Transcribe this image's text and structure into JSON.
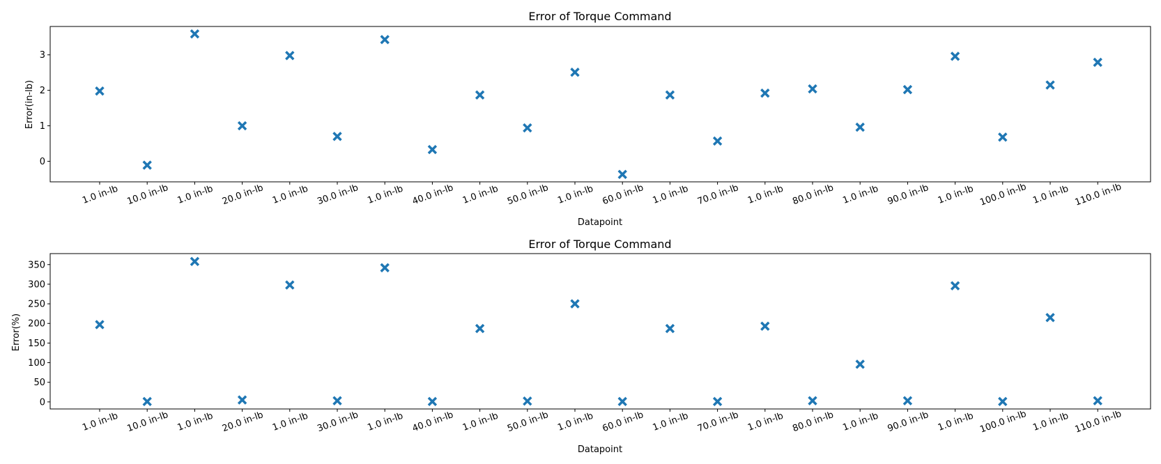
{
  "colors": {
    "marker": "#1f77b4",
    "axes": "#000000",
    "background": "#ffffff"
  },
  "chart_data": [
    {
      "type": "scatter",
      "title": "Error of Torque Command",
      "xlabel": "Datapoint",
      "ylabel": "Error(in-lb)",
      "marker": "X",
      "grid": false,
      "x_tick_rotation_deg": 20,
      "categories": [
        "1.0 in-lb",
        "10.0 in-lb",
        "1.0 in-lb",
        "20.0 in-lb",
        "1.0 in-lb",
        "30.0 in-lb",
        "1.0 in-lb",
        "40.0 in-lb",
        "1.0 in-lb",
        "50.0 in-lb",
        "1.0 in-lb",
        "60.0 in-lb",
        "1.0 in-lb",
        "70.0 in-lb",
        "1.0 in-lb",
        "80.0 in-lb",
        "1.0 in-lb",
        "90.0 in-lb",
        "1.0 in-lb",
        "100.0 in-lb",
        "1.0 in-lb",
        "110.0 in-lb"
      ],
      "values": [
        1.98,
        -0.11,
        3.59,
        1.0,
        2.98,
        0.7,
        3.43,
        0.33,
        1.87,
        0.94,
        2.51,
        -0.37,
        1.87,
        0.57,
        1.92,
        2.04,
        0.96,
        2.02,
        2.96,
        0.68,
        2.15,
        2.79
      ],
      "ylim": [
        -0.58,
        3.8
      ],
      "yticks": [
        0,
        1,
        2,
        3
      ]
    },
    {
      "type": "scatter",
      "title": "Error of Torque Command",
      "xlabel": "Datapoint",
      "ylabel": "Error(%)",
      "marker": "X",
      "grid": false,
      "x_tick_rotation_deg": 20,
      "categories": [
        "1.0 in-lb",
        "10.0 in-lb",
        "1.0 in-lb",
        "20.0 in-lb",
        "1.0 in-lb",
        "30.0 in-lb",
        "1.0 in-lb",
        "40.0 in-lb",
        "1.0 in-lb",
        "50.0 in-lb",
        "1.0 in-lb",
        "60.0 in-lb",
        "1.0 in-lb",
        "70.0 in-lb",
        "1.0 in-lb",
        "80.0 in-lb",
        "1.0 in-lb",
        "90.0 in-lb",
        "1.0 in-lb",
        "100.0 in-lb",
        "1.0 in-lb",
        "110.0 in-lb"
      ],
      "values": [
        197,
        1,
        358,
        5,
        298,
        3,
        342,
        1,
        187,
        2,
        250,
        1,
        187,
        1,
        193,
        3,
        96,
        3,
        296,
        1,
        215,
        3
      ],
      "ylim": [
        -18,
        378
      ],
      "yticks": [
        0,
        50,
        100,
        150,
        200,
        250,
        300,
        350
      ]
    }
  ]
}
